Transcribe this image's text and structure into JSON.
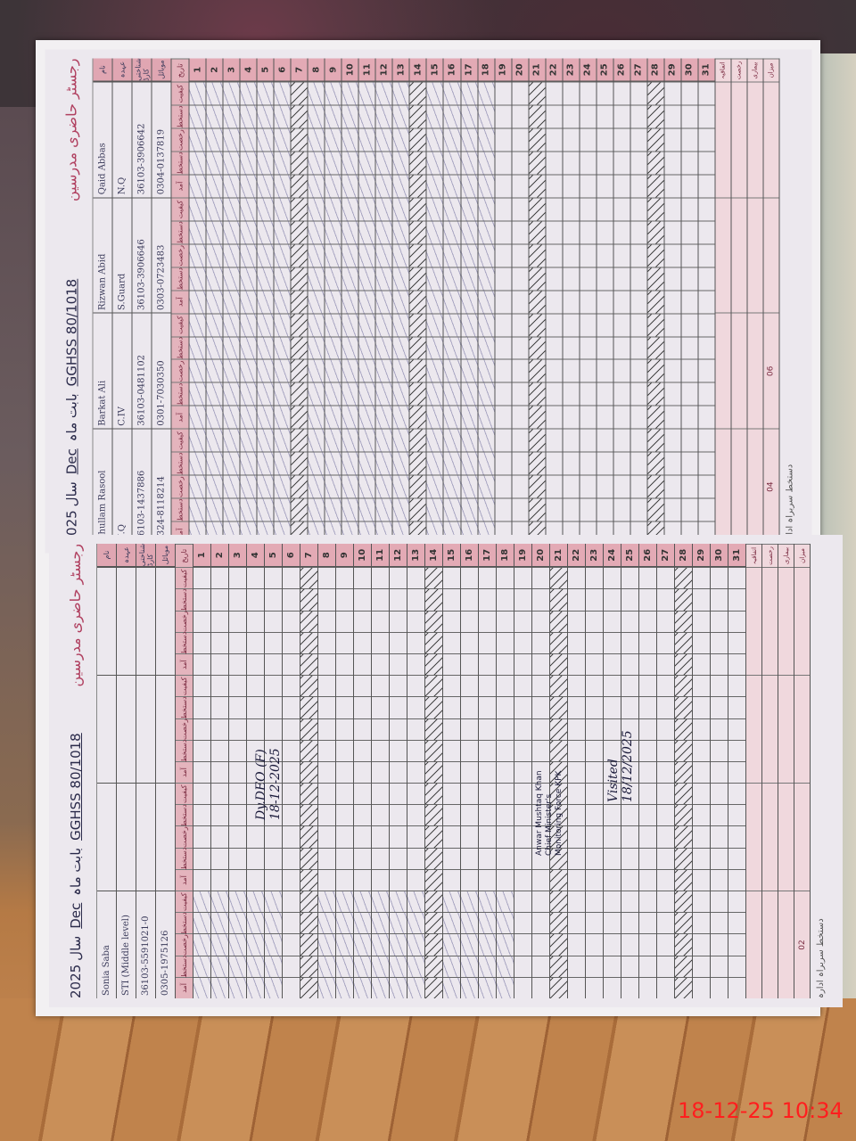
{
  "photo_timestamp": "18-12-25  10:34",
  "register_title_urdu": "رجسٹر حاضری مدرسین",
  "pages": [
    {
      "year": "2025",
      "year_label": "سال",
      "month": "Dec",
      "month_label": "بابت ماہ",
      "school": "GGHSS 80/1018",
      "row_labels": [
        "نام",
        "عہدہ",
        "شناختی کارڈ",
        "موبائل"
      ],
      "teachers": [
        {
          "name": "Ghullam Rasool",
          "post": "N.Q",
          "cnic": "36103-1437886",
          "phone": "0324-8118214"
        },
        {
          "name": "Barkat Ali",
          "post": "C.IV",
          "cnic": "36103-0481102",
          "phone": "0301-7030350"
        },
        {
          "name": "Rizwan Abid",
          "post": "S.Guard",
          "cnic": "36103-3906646",
          "phone": "0303-0723483"
        },
        {
          "name": "Qaid Abbas",
          "post": "N.Q",
          "cnic": "36103-3906642",
          "phone": "0304-0137819"
        }
      ],
      "col_headers": [
        "آمد",
        "دستخط",
        "رخصت",
        "دستخط",
        "کیفیت"
      ],
      "day_header": "تاریخ",
      "filled_days": [
        1,
        2,
        3,
        4,
        5,
        6,
        8,
        9,
        10,
        11,
        12,
        13,
        15,
        16,
        17,
        18
      ],
      "hatched_days": [
        7,
        14,
        21,
        28
      ],
      "summary_labels": [
        "اتفاقیہ",
        "رخصت",
        "بیماری",
        "میزان"
      ],
      "summary_values": [
        "04",
        "06"
      ],
      "footer": "دستخط سربراہ ادارہ"
    },
    {
      "year": "2025",
      "year_label": "سال",
      "month": "Dec",
      "month_label": "بابت ماہ",
      "school": "GGHSS 80/1018",
      "row_labels": [
        "نام",
        "عہدہ",
        "شناختی کارڈ",
        "موبائل"
      ],
      "teachers": [
        {
          "name": "Sonia Saba",
          "post": "STI (Middle level)",
          "cnic": "36103-5591021-0",
          "phone": "0305-1975126"
        },
        {
          "name": "",
          "post": "",
          "cnic": "",
          "phone": ""
        },
        {
          "name": "",
          "post": "",
          "cnic": "",
          "phone": ""
        },
        {
          "name": "",
          "post": "",
          "cnic": "",
          "phone": ""
        }
      ],
      "col_headers": [
        "آمد",
        "دستخط",
        "رخصت",
        "دستخط",
        "کیفیت"
      ],
      "day_header": "تاریخ",
      "filled_days": [
        1,
        2,
        3,
        4,
        5,
        8,
        9,
        10,
        11,
        12,
        13,
        15,
        16,
        17,
        18
      ],
      "hatched_days": [
        7,
        14,
        21,
        28
      ],
      "summary_labels": [
        "اتفاقیہ",
        "رخصت",
        "بیماری",
        "میزان"
      ],
      "summary_values": [
        "02"
      ],
      "footer": "دستخط سربراہ ادارہ",
      "stamp": [
        "Anwar Mushtaq Khan",
        "Chief Minister's",
        "Monitoring Force KPK"
      ],
      "visit_note": [
        "Visited",
        "18/12/2025"
      ],
      "remark": [
        "Dy.DEO (F)",
        "18-12-2025"
      ]
    }
  ]
}
